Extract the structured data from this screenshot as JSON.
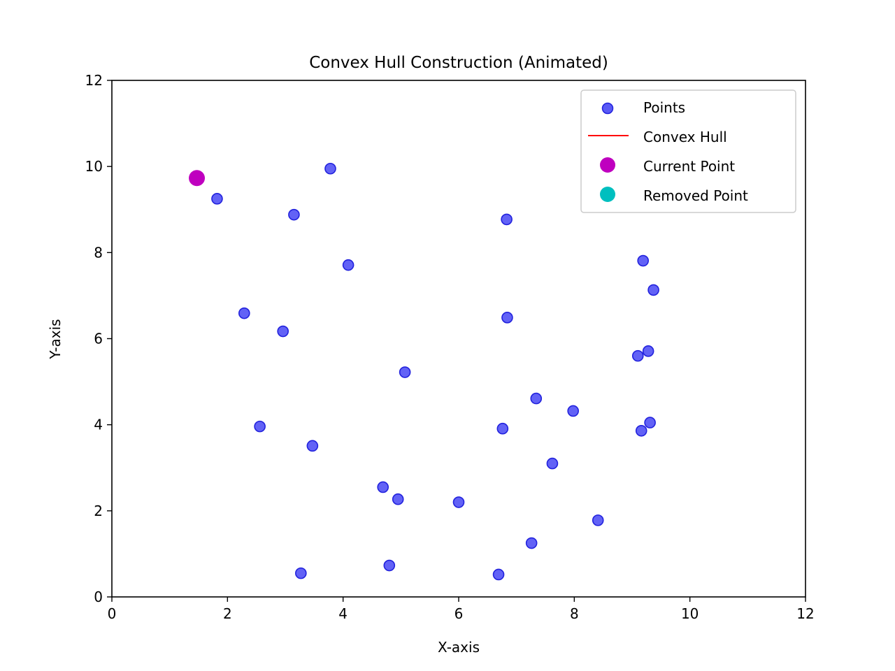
{
  "chart_data": {
    "type": "scatter",
    "title": "Convex Hull Construction (Animated)",
    "xlabel": "X-axis",
    "ylabel": "Y-axis",
    "xlim": [
      0,
      12
    ],
    "ylim": [
      0,
      12
    ],
    "xticks": [
      "0",
      "2",
      "4",
      "6",
      "8",
      "10",
      "12"
    ],
    "yticks": [
      "0",
      "2",
      "4",
      "6",
      "8",
      "10",
      "12"
    ],
    "grid": false,
    "legend_position": "top-right",
    "legend": [
      {
        "label": "Points",
        "marker": "circle",
        "color": "#5a5af5"
      },
      {
        "label": "Convex Hull",
        "marker": "line",
        "color": "#ff0000"
      },
      {
        "label": "Current Point",
        "marker": "circle",
        "color": "#bf00bf"
      },
      {
        "label": "Removed Point",
        "marker": "circle",
        "color": "#00bfbf"
      }
    ],
    "series": [
      {
        "name": "Points",
        "color": "#5a5af5",
        "edge_color": "#2222dd",
        "points": [
          [
            1.82,
            9.25
          ],
          [
            3.78,
            9.95
          ],
          [
            3.15,
            8.88
          ],
          [
            6.83,
            8.77
          ],
          [
            4.09,
            7.71
          ],
          [
            9.19,
            7.81
          ],
          [
            9.37,
            7.13
          ],
          [
            2.29,
            6.59
          ],
          [
            2.96,
            6.17
          ],
          [
            6.84,
            6.49
          ],
          [
            5.07,
            5.22
          ],
          [
            9.1,
            5.6
          ],
          [
            9.28,
            5.71
          ],
          [
            7.34,
            4.61
          ],
          [
            7.98,
            4.32
          ],
          [
            2.56,
            3.96
          ],
          [
            6.76,
            3.91
          ],
          [
            9.16,
            3.86
          ],
          [
            9.31,
            4.05
          ],
          [
            3.47,
            3.51
          ],
          [
            7.62,
            3.1
          ],
          [
            4.69,
            2.55
          ],
          [
            4.95,
            2.27
          ],
          [
            6.0,
            2.2
          ],
          [
            8.41,
            1.78
          ],
          [
            7.26,
            1.25
          ],
          [
            3.27,
            0.55
          ],
          [
            4.8,
            0.73
          ],
          [
            6.69,
            0.52
          ]
        ]
      },
      {
        "name": "Current Point",
        "color": "#bf00bf",
        "points": [
          [
            1.47,
            9.73
          ]
        ]
      },
      {
        "name": "Convex Hull",
        "color": "#ff0000",
        "points": []
      },
      {
        "name": "Removed Point",
        "color": "#00bfbf",
        "points": []
      }
    ]
  }
}
